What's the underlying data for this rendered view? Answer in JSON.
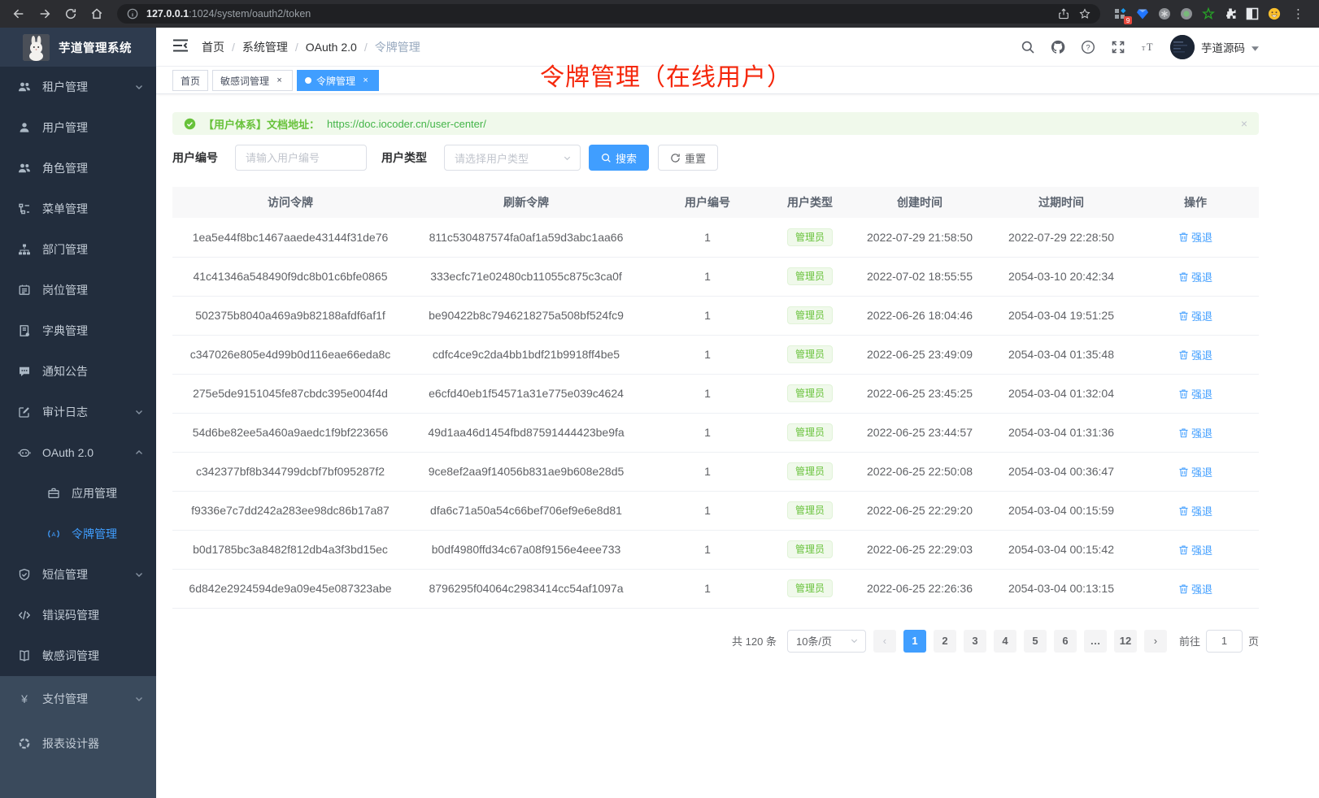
{
  "colors": {
    "accent": "#409eff",
    "success": "#67c23a",
    "annotation_red": "#f5270b",
    "sidebar_bg": "#222d3d",
    "sidebar_bottom_bg": "#3a4a5c"
  },
  "browser": {
    "url_host": "127.0.0.1",
    "url_path": ":1024/system/oauth2/token",
    "extension_badge": "9"
  },
  "sidebar": {
    "logo_title": "芋道管理系统",
    "items": [
      {
        "name": "tenant",
        "label": "租户管理",
        "icon": "tenant",
        "chevron": "down"
      },
      {
        "name": "user",
        "label": "用户管理",
        "icon": "user"
      },
      {
        "name": "role",
        "label": "角色管理",
        "icon": "tenant"
      },
      {
        "name": "menu",
        "label": "菜单管理",
        "icon": "menu"
      },
      {
        "name": "dept",
        "label": "部门管理",
        "icon": "dept"
      },
      {
        "name": "post",
        "label": "岗位管理",
        "icon": "post"
      },
      {
        "name": "dict",
        "label": "字典管理",
        "icon": "dict"
      },
      {
        "name": "notice",
        "label": "通知公告",
        "icon": "notice"
      },
      {
        "name": "audit-log",
        "label": "审计日志",
        "icon": "audit",
        "chevron": "down"
      },
      {
        "name": "oauth2",
        "label": "OAuth 2.0",
        "icon": "oauth",
        "chevron": "up"
      },
      {
        "name": "oauth-app",
        "label": "应用管理",
        "icon": "app",
        "sub": true
      },
      {
        "name": "oauth-token",
        "label": "令牌管理",
        "icon": "token",
        "sub": true,
        "active": true
      },
      {
        "name": "sms",
        "label": "短信管理",
        "icon": "sms",
        "chevron": "down"
      },
      {
        "name": "error-code",
        "label": "错误码管理",
        "icon": "errcode"
      },
      {
        "name": "sensitive",
        "label": "敏感词管理",
        "icon": "sensitive"
      },
      {
        "name": "pay",
        "label": "支付管理",
        "icon": "pay",
        "chevron": "down",
        "section": "light"
      },
      {
        "name": "report",
        "label": "报表设计器",
        "icon": "report",
        "section": "light"
      }
    ]
  },
  "header": {
    "breadcrumb": [
      "首页",
      "系统管理",
      "OAuth 2.0",
      "令牌管理"
    ],
    "annotation": "令牌管理（在线用户）",
    "user_name": "芋道源码"
  },
  "tabs": [
    {
      "label": "首页",
      "closable": false,
      "active": false
    },
    {
      "label": "敏感词管理",
      "closable": true,
      "active": false
    },
    {
      "label": "令牌管理",
      "closable": true,
      "active": true
    }
  ],
  "alert": {
    "prefix": "【用户体系】文档地址：",
    "link": "https://doc.iocoder.cn/user-center/"
  },
  "filters": {
    "user_id_label": "用户编号",
    "user_id_placeholder": "请输入用户编号",
    "user_type_label": "用户类型",
    "user_type_placeholder": "请选择用户类型",
    "search_label": "搜索",
    "reset_label": "重置"
  },
  "table": {
    "columns": [
      "访问令牌",
      "刷新令牌",
      "用户编号",
      "用户类型",
      "创建时间",
      "过期时间",
      "操作"
    ],
    "action_label": "强退",
    "rows": [
      {
        "access": "1ea5e44f8bc1467aaede43144f31de76",
        "refresh": "811c530487574fa0af1a59d3abc1aa66",
        "user_id": "1",
        "user_type": "管理员",
        "created": "2022-07-29 21:58:50",
        "expires": "2022-07-29 22:28:50"
      },
      {
        "access": "41c41346a548490f9dc8b01c6bfe0865",
        "refresh": "333ecfc71e02480cb11055c875c3ca0f",
        "user_id": "1",
        "user_type": "管理员",
        "created": "2022-07-02 18:55:55",
        "expires": "2054-03-10 20:42:34"
      },
      {
        "access": "502375b8040a469a9b82188afdf6af1f",
        "refresh": "be90422b8c7946218275a508bf524fc9",
        "user_id": "1",
        "user_type": "管理员",
        "created": "2022-06-26 18:04:46",
        "expires": "2054-03-04 19:51:25"
      },
      {
        "access": "c347026e805e4d99b0d116eae66eda8c",
        "refresh": "cdfc4ce9c2da4bb1bdf21b9918ff4be5",
        "user_id": "1",
        "user_type": "管理员",
        "created": "2022-06-25 23:49:09",
        "expires": "2054-03-04 01:35:48"
      },
      {
        "access": "275e5de9151045fe87cbdc395e004f4d",
        "refresh": "e6cfd40eb1f54571a31e775e039c4624",
        "user_id": "1",
        "user_type": "管理员",
        "created": "2022-06-25 23:45:25",
        "expires": "2054-03-04 01:32:04"
      },
      {
        "access": "54d6be82ee5a460a9aedc1f9bf223656",
        "refresh": "49d1aa46d1454fbd87591444423be9fa",
        "user_id": "1",
        "user_type": "管理员",
        "created": "2022-06-25 23:44:57",
        "expires": "2054-03-04 01:31:36"
      },
      {
        "access": "c342377bf8b344799dcbf7bf095287f2",
        "refresh": "9ce8ef2aa9f14056b831ae9b608e28d5",
        "user_id": "1",
        "user_type": "管理员",
        "created": "2022-06-25 22:50:08",
        "expires": "2054-03-04 00:36:47"
      },
      {
        "access": "f9336e7c7dd242a283ee98dc86b17a87",
        "refresh": "dfa6c71a50a54c66bef706ef9e6e8d81",
        "user_id": "1",
        "user_type": "管理员",
        "created": "2022-06-25 22:29:20",
        "expires": "2054-03-04 00:15:59"
      },
      {
        "access": "b0d1785bc3a8482f812db4a3f3bd15ec",
        "refresh": "b0df4980ffd34c67a08f9156e4eee733",
        "user_id": "1",
        "user_type": "管理员",
        "created": "2022-06-25 22:29:03",
        "expires": "2054-03-04 00:15:42"
      },
      {
        "access": "6d842e2924594de9a09e45e087323abe",
        "refresh": "8796295f04064c2983414cc54af1097a",
        "user_id": "1",
        "user_type": "管理员",
        "created": "2022-06-25 22:26:36",
        "expires": "2054-03-04 00:13:15"
      }
    ]
  },
  "pagination": {
    "total_text": "共 120 条",
    "page_size": "10条/页",
    "pages": [
      "1",
      "2",
      "3",
      "4",
      "5",
      "6",
      "…",
      "12"
    ],
    "active_page": "1",
    "goto_label": "前往",
    "goto_value": "1",
    "goto_suffix": "页"
  }
}
